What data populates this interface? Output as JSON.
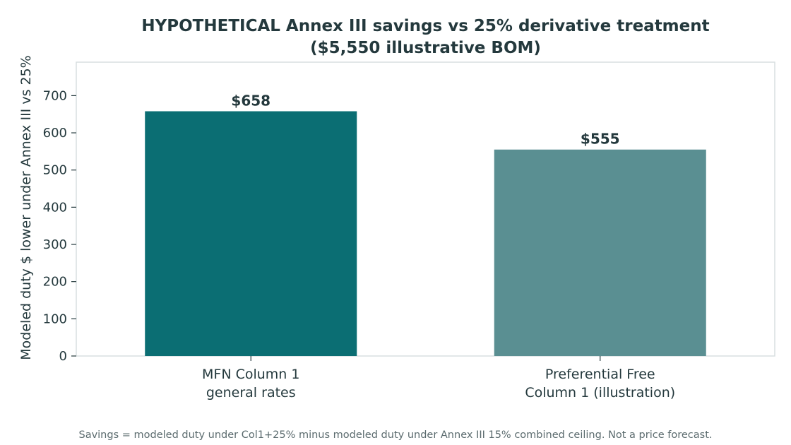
{
  "chart_data": {
    "type": "bar",
    "title": "HYPOTHETICAL Annex III savings vs 25% derivative treatment",
    "subtitle": "($5,550 illustrative BOM)",
    "ylabel": "Modeled duty $ lower under Annex III vs 25%",
    "xlabel": "",
    "categories": [
      [
        "MFN Column 1",
        "general rates"
      ],
      [
        "Preferential Free",
        "Column 1 (illustration)"
      ]
    ],
    "values": [
      658,
      555
    ],
    "data_labels": [
      "$658",
      "$555"
    ],
    "bar_colors": [
      "#0b6e73",
      "#5a8f92"
    ],
    "ylim": [
      0,
      790
    ],
    "yticks": [
      0,
      100,
      200,
      300,
      400,
      500,
      600,
      700
    ],
    "grid": false
  },
  "footnote": "Savings = modeled duty under Col1+25% minus modeled duty under Annex III 15% combined ceiling. Not a price forecast."
}
